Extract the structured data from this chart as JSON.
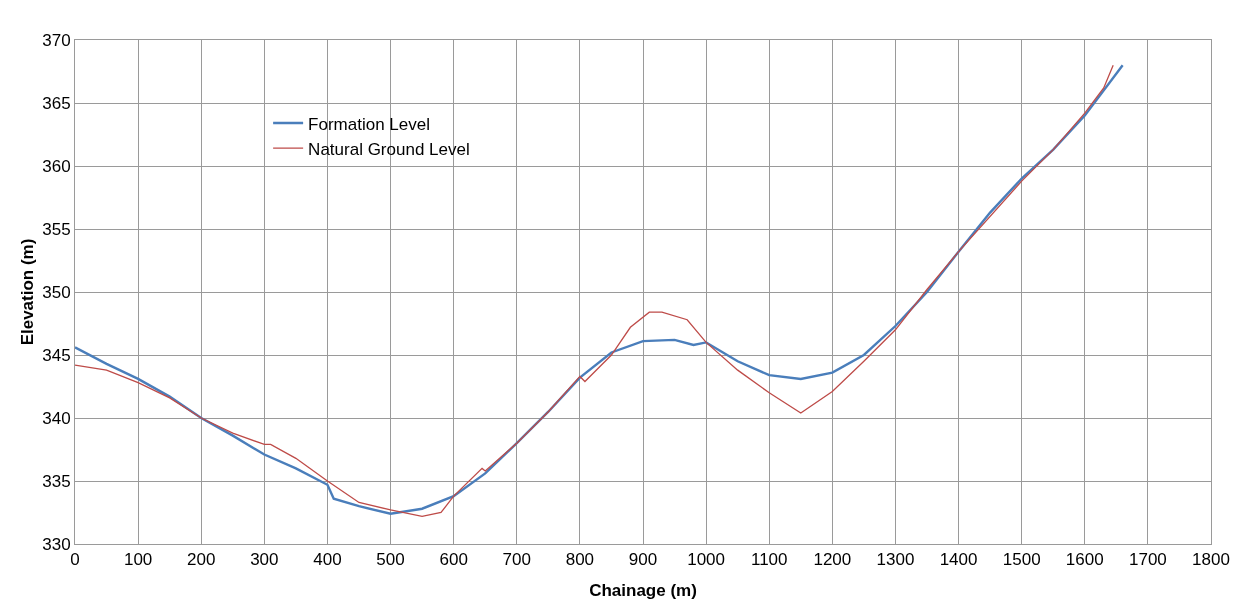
{
  "chart_data": {
    "type": "line",
    "xlabel": "Chainage (m)",
    "ylabel": "Elevation (m)",
    "xlim": [
      0,
      1800
    ],
    "xticks": [
      0,
      100,
      200,
      300,
      400,
      500,
      600,
      700,
      800,
      900,
      1000,
      1100,
      1200,
      1300,
      1400,
      1500,
      1600,
      1700,
      1800
    ],
    "ylim": [
      330,
      370
    ],
    "yticks": [
      330,
      335,
      340,
      345,
      350,
      355,
      360,
      365,
      370
    ],
    "grid": true,
    "legend": "top left",
    "marker": "none",
    "line_style": "solid",
    "series": [
      {
        "name": "Formation Level",
        "color": "#4a7ebb",
        "x": [
          0,
          50,
          100,
          150,
          200,
          250,
          300,
          350,
          400,
          410,
          450,
          500,
          550,
          600,
          650,
          700,
          750,
          800,
          850,
          900,
          950,
          980,
          1000,
          1050,
          1100,
          1150,
          1200,
          1250,
          1300,
          1350,
          1400,
          1450,
          1500,
          1550,
          1600,
          1660
        ],
        "values": [
          345.6,
          344.3,
          343.1,
          341.7,
          340.0,
          338.6,
          337.1,
          336.0,
          334.7,
          333.6,
          333.0,
          332.4,
          332.8,
          333.8,
          335.6,
          338.0,
          340.5,
          343.2,
          345.2,
          346.1,
          346.2,
          345.8,
          346.0,
          344.5,
          343.4,
          343.1,
          343.6,
          345.0,
          347.3,
          350.0,
          353.2,
          356.3,
          359.0,
          361.3,
          364.0,
          368.0
        ]
      },
      {
        "name": "Natural Ground Level",
        "color": "#be4b48",
        "x": [
          0,
          50,
          100,
          150,
          200,
          250,
          300,
          310,
          350,
          400,
          450,
          500,
          550,
          580,
          600,
          645,
          650,
          700,
          750,
          800,
          808,
          850,
          880,
          910,
          930,
          970,
          1000,
          1050,
          1100,
          1150,
          1200,
          1250,
          1300,
          1350,
          1400,
          1500,
          1550,
          1600,
          1630,
          1645
        ],
        "values": [
          344.2,
          343.8,
          342.8,
          341.6,
          340.0,
          338.8,
          337.9,
          337.9,
          336.8,
          335.0,
          333.3,
          332.7,
          332.2,
          332.5,
          333.8,
          336.0,
          335.8,
          338.0,
          340.5,
          343.3,
          342.9,
          345.0,
          347.2,
          348.4,
          348.4,
          347.8,
          346.0,
          343.8,
          342.0,
          340.4,
          342.1,
          344.5,
          347.0,
          350.2,
          353.2,
          358.8,
          361.3,
          364.2,
          366.2,
          368.0
        ]
      }
    ]
  }
}
